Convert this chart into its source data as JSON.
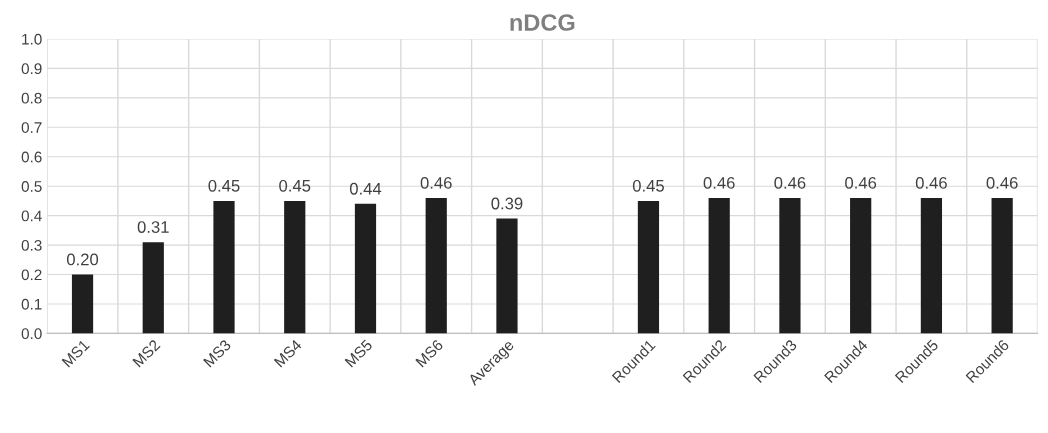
{
  "chart_data": {
    "type": "bar",
    "title": "nDCG",
    "categories": [
      "MS1",
      "MS2",
      "MS3",
      "MS4",
      "MS5",
      "MS6",
      "Average",
      null,
      "Round1",
      "Round2",
      "Round3",
      "Round4",
      "Round5",
      "Round6"
    ],
    "values": [
      0.2,
      0.31,
      0.45,
      0.45,
      0.44,
      0.46,
      0.39,
      null,
      0.45,
      0.46,
      0.46,
      0.46,
      0.46,
      0.46
    ],
    "value_labels": [
      "0.20",
      "0.31",
      "0.45",
      "0.45",
      "0.44",
      "0.46",
      "0.39",
      null,
      "0.45",
      "0.46",
      "0.46",
      "0.46",
      "0.46",
      "0.46"
    ],
    "color": "#1f1f1f",
    "ylim": [
      0,
      1.0
    ],
    "yticks": [
      {
        "value": 0,
        "label": "0.0"
      },
      {
        "value": 0.1,
        "label": "0.1"
      },
      {
        "value": 0.2,
        "label": "0.2"
      },
      {
        "value": 0.3,
        "label": "0.3"
      },
      {
        "value": 0.4,
        "label": "0.4"
      },
      {
        "value": 0.5,
        "label": "0.5"
      },
      {
        "value": 0.6,
        "label": "0.6"
      },
      {
        "value": 0.7,
        "label": "0.7"
      },
      {
        "value": 0.8,
        "label": "0.8"
      },
      {
        "value": 0.9,
        "label": "0.9"
      },
      {
        "value": 1.0,
        "label": "1.0"
      }
    ],
    "grid": true
  }
}
